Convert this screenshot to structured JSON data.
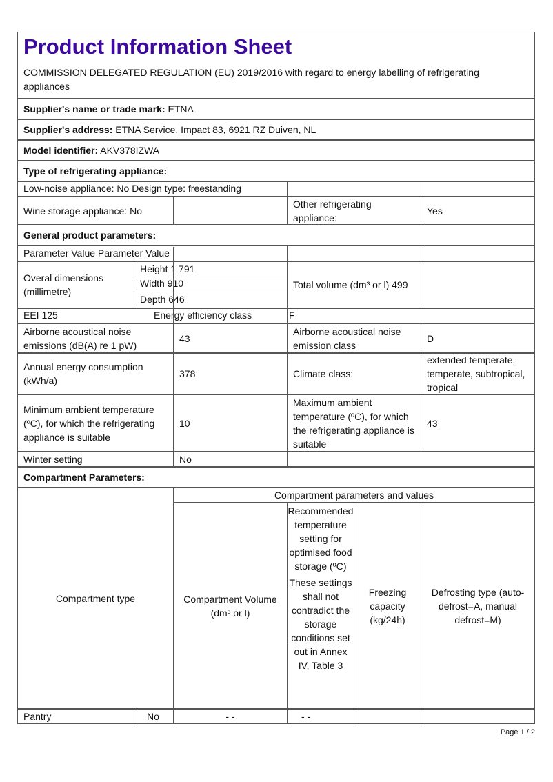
{
  "title": "Product Information Sheet",
  "regulation": "COMMISSION DELEGATED REGULATION (EU) 2019/2016 with regard to energy labelling of refrigerating appliances",
  "supplier_name": {
    "label": "Supplier's name or trade mark:",
    "value": "ETNA"
  },
  "supplier_address": {
    "label": "Supplier's address:",
    "value": "ETNA Service, Impact 83, 6921 RZ Duiven, NL"
  },
  "model": {
    "label": "Model identifier:",
    "value": "AKV378IZWA"
  },
  "type_heading": "Type of refrigerating appliance:",
  "low_noise": "Low-noise appliance: No Design type: freestanding",
  "wine": "Wine storage appliance: No",
  "other_label": "Other refrigerating appliance:",
  "other_value": "Yes",
  "general_heading": "General product parameters:",
  "param_header": "Parameter Value Parameter Value",
  "dims_label": "Overal dimensions (millimetre)",
  "height": "Height 1 791",
  "width": "Width 910",
  "depth": "Depth 646",
  "total_volume": "Total volume (dm³ or l) 499",
  "eei": "EEI 125",
  "energy_class_label": "Energy efficiency class",
  "energy_class": "F",
  "noise_label": "Airborne acoustical noise emissions (dB(A) re 1 pW)",
  "noise_value": "43",
  "noise_class_label": "Airborne acoustical noise emission class",
  "noise_class": "D",
  "annual_label": "Annual energy consumption (kWh/a)",
  "annual_value": "378",
  "climate_label": "Climate class:",
  "climate_value": "extended temperate, temperate, subtropical, tropical",
  "min_label": "Minimum ambient temperature (ºC), for which the refrigerating appliance is suitable",
  "min_value": "10",
  "max_label": "Maximum ambient temperature (ºC), for which the refrigerating appliance is suitable",
  "max_value": "43",
  "winter_label": "Winter setting",
  "winter_value": "No",
  "compartment_heading": "Compartment Parameters:",
  "comp_type": "Compartment type",
  "comp_params": "Compartment parameters and values",
  "comp_volume": "Compartment Volume (dm³ or l)",
  "comp_temp": "Recommended temperature setting for optimised food storage (ºC)",
  "comp_temp_note": "These settings shall not contradict the storage conditions set out in Annex IV, Table 3",
  "comp_freezing": "Freezing capacity (kg/24h)",
  "comp_defrost": "Defrosting type (auto-defrost=A, manual defrost=M)",
  "rows": [
    {
      "name": "Pantry",
      "present": "No",
      "volume": "- -",
      "temp": "- -"
    }
  ],
  "page": "Page 1 / 2"
}
